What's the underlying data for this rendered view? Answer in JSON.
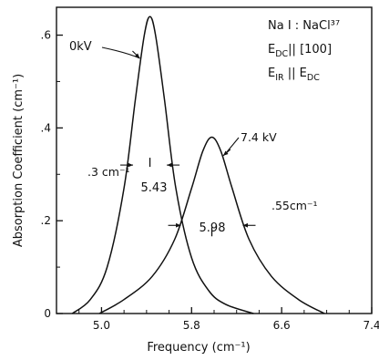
{
  "chart_data": {
    "type": "line",
    "xlabel": "Frequency (cm⁻¹)",
    "ylabel": "Absorption Coefficient (cm⁻¹)",
    "xlim": [
      4.6,
      7.4
    ],
    "ylim": [
      0,
      0.66
    ],
    "xticks": [
      5.0,
      5.8,
      6.6,
      7.4
    ],
    "xtick_labels": [
      "5.0",
      "5.8",
      "6.6",
      "7.4"
    ],
    "yticks": [
      0,
      0.2,
      0.4,
      0.6
    ],
    "ytick_labels": [
      "0",
      ".2",
      ".4",
      ".6"
    ],
    "grid": false,
    "series": [
      {
        "name": "0kV",
        "center": 5.43,
        "peak": 0.64,
        "fwhm": 0.3,
        "x": [
          4.74,
          4.9,
          5.05,
          5.2,
          5.3,
          5.38,
          5.43,
          5.48,
          5.56,
          5.66,
          5.8,
          5.95,
          6.1,
          6.35
        ],
        "y": [
          0.0,
          0.03,
          0.1,
          0.27,
          0.46,
          0.6,
          0.64,
          0.6,
          0.46,
          0.27,
          0.12,
          0.05,
          0.02,
          0.0
        ]
      },
      {
        "name": "7.4kV",
        "center": 5.98,
        "peak": 0.38,
        "fwhm": 0.55,
        "x": [
          4.98,
          5.2,
          5.45,
          5.65,
          5.8,
          5.9,
          5.98,
          6.06,
          6.16,
          6.31,
          6.51,
          6.75,
          6.98
        ],
        "y": [
          0.0,
          0.03,
          0.08,
          0.16,
          0.27,
          0.35,
          0.38,
          0.35,
          0.27,
          0.16,
          0.08,
          0.03,
          0.0
        ]
      }
    ],
    "annotations": {
      "series1_label": "0kV",
      "series2_label": "7.4 kV",
      "width1": ".3 cm⁻¹",
      "width2": ".55cm⁻¹",
      "center1": "5.43",
      "center2": "5.98"
    },
    "info_text": {
      "line1": "Na I : NaCl³⁷",
      "line2_main": "E",
      "line2_sub": "DC",
      "line2_rest": "|| [100]",
      "line3_main": "E",
      "line3_sub": "IR",
      "line3_mid": " || E",
      "line3_sub2": "DC"
    },
    "line_color": "#111111"
  }
}
